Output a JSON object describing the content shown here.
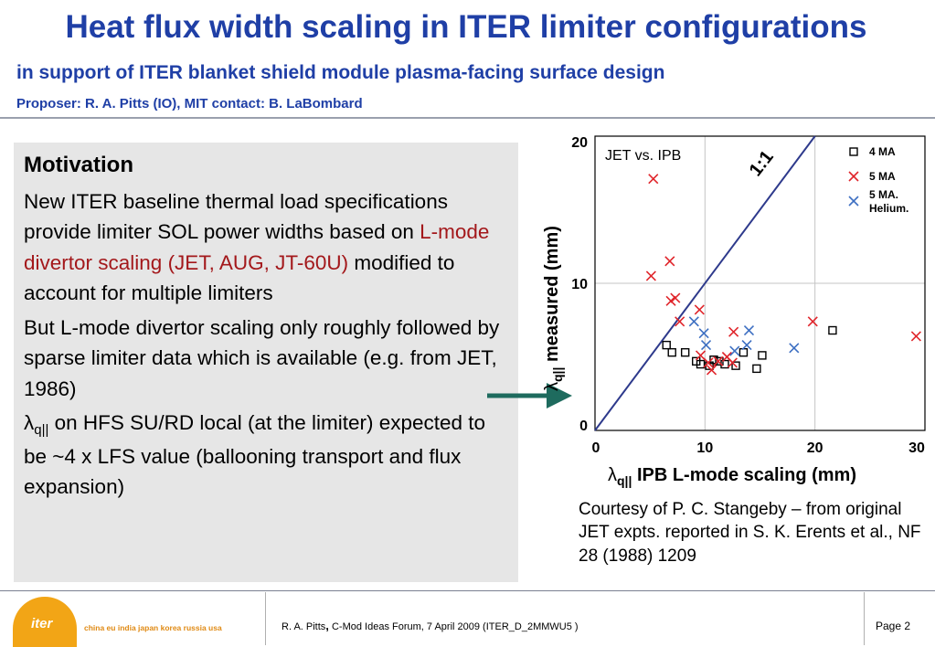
{
  "header": {
    "title": "Heat flux width scaling in ITER limiter configurations",
    "subtitle": "in support of ITER blanket shield module plasma-facing surface design",
    "proposer": "Proposer: R. A. Pitts (IO), MIT contact: B. LaBombard"
  },
  "motivation": {
    "heading": "Motivation",
    "p1_pre": "New ITER baseline thermal load specifications provide limiter SOL power widths based on ",
    "p1_red": "L-mode divertor scaling (JET, AUG, JT-60U)",
    "p1_post": " modified to account for multiple limiters",
    "p2": "But L-mode divertor scaling only roughly followed by sparse limiter data which is available (e.g. from JET, 1986)",
    "p3_symbol": "λ",
    "p3_sub": "q||",
    "p3_rest": " on HFS SU/RD local (at the limiter) expected to be ~4 x LFS value (ballooning transport and flux expansion)"
  },
  "colors": {
    "title_blue": "#1f3fa6",
    "red_text": "#a3181b",
    "arrow": "#1e6b5e",
    "line_1to1": "#2e3a8c",
    "marker_red": "#e0252b",
    "marker_blue": "#3d6fc2",
    "logo_orange": "#f2a516"
  },
  "chart_data": {
    "type": "scatter",
    "title": "JET vs. IPB",
    "xlabel_symbol": "λ",
    "xlabel_sub": "q||",
    "xlabel": "IPB L-mode scaling (mm)",
    "ylabel_symbol": "λ",
    "ylabel_sub": "q||",
    "ylabel": "measured (mm)",
    "xlim": [
      0,
      30
    ],
    "ylim": [
      0,
      20
    ],
    "xticks": [
      0,
      10,
      20,
      30
    ],
    "yticks": [
      0,
      10,
      20
    ],
    "grid": true,
    "reference_line": {
      "label": "1:1",
      "slope": 1
    },
    "legend_position": "top-right",
    "series": [
      {
        "name": "4 MA",
        "marker": "square",
        "color": "#000000",
        "points": [
          [
            6.5,
            5.8
          ],
          [
            7.0,
            5.3
          ],
          [
            8.2,
            5.3
          ],
          [
            9.2,
            4.7
          ],
          [
            9.6,
            4.5
          ],
          [
            10.4,
            4.4
          ],
          [
            10.8,
            4.8
          ],
          [
            11.3,
            4.7
          ],
          [
            11.8,
            4.5
          ],
          [
            12.8,
            4.4
          ],
          [
            13.5,
            5.3
          ],
          [
            14.7,
            4.2
          ],
          [
            15.2,
            5.1
          ],
          [
            21.6,
            6.8
          ]
        ]
      },
      {
        "name": "5 MA",
        "marker": "x",
        "color": "#e0252b",
        "points": [
          [
            5.3,
            17.1
          ],
          [
            5.1,
            10.5
          ],
          [
            6.8,
            11.5
          ],
          [
            6.9,
            8.8
          ],
          [
            7.3,
            9.0
          ],
          [
            7.7,
            7.4
          ],
          [
            9.5,
            8.2
          ],
          [
            9.6,
            5.1
          ],
          [
            10.3,
            4.6
          ],
          [
            10.6,
            4.1
          ],
          [
            11.2,
            4.7
          ],
          [
            12.0,
            5.0
          ],
          [
            12.5,
            4.6
          ],
          [
            12.6,
            6.7
          ],
          [
            19.8,
            7.4
          ],
          [
            29.2,
            6.4
          ]
        ]
      },
      {
        "name": "5 MA. Helium.",
        "marker": "x",
        "color": "#3d6fc2",
        "points": [
          [
            9.0,
            7.4
          ],
          [
            9.9,
            6.6
          ],
          [
            10.1,
            5.8
          ],
          [
            12.7,
            5.4
          ],
          [
            13.8,
            5.8
          ],
          [
            14.0,
            6.8
          ],
          [
            18.1,
            5.6
          ]
        ]
      }
    ]
  },
  "courtesy": "Courtesy of P. C. Stangeby – from original JET expts. reported in S. K. Erents et al., NF 28 (1988) 1209",
  "footer": {
    "logo": "iter",
    "partners": "china eu india japan korea russia usa",
    "author": "R. A. Pitts",
    "event": "C-Mod Ideas Forum, 7 April 2009  (ITER_D_2MMWU5  )",
    "page": "Page 2"
  }
}
